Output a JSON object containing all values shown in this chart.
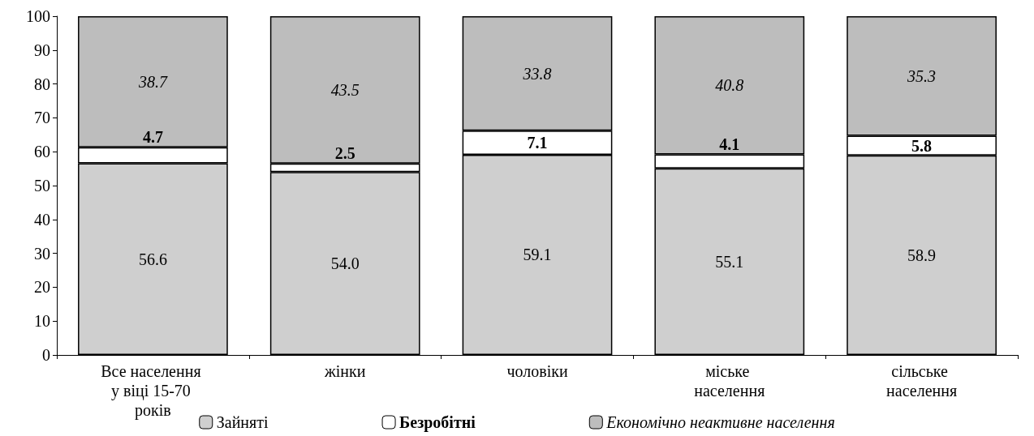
{
  "chart_data": {
    "type": "bar",
    "stacked": true,
    "categories": [
      "Все населення у віці 15-70 років",
      "жінки",
      "чоловіки",
      "міське населення",
      "сільське населення"
    ],
    "series": [
      {
        "name": "Зайняті",
        "color": "#cfcfcf",
        "values": [
          56.6,
          54.0,
          59.1,
          55.1,
          58.9
        ],
        "value_labels": [
          "56.6",
          "54.0",
          "59.1",
          "55.1",
          "58.9"
        ]
      },
      {
        "name": "Безробітні",
        "color": "#ffffff",
        "values": [
          4.7,
          2.5,
          7.1,
          4.1,
          5.8
        ],
        "value_labels": [
          "4.7",
          "2.5",
          "7.1",
          "4.1",
          "5.8"
        ]
      },
      {
        "name": "Економічно неактивне населення",
        "color": "#bdbdbd",
        "values": [
          38.7,
          43.5,
          33.8,
          40.8,
          35.3
        ],
        "value_labels": [
          "38.7",
          "43.5",
          "33.8",
          "40.8",
          "35.3"
        ]
      }
    ],
    "ylim": [
      0,
      100
    ],
    "yticks": [
      0,
      10,
      20,
      30,
      40,
      50,
      60,
      70,
      80,
      90,
      100
    ],
    "grid": false,
    "legend": "bottom"
  }
}
